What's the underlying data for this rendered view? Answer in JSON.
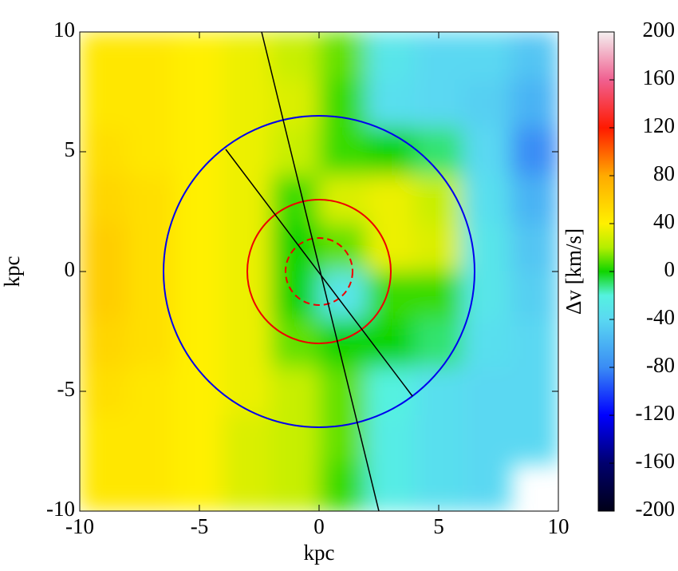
{
  "chart_data": {
    "type": "heatmap",
    "xlabel": "kpc",
    "ylabel": "kpc",
    "xlim": [
      -10,
      10
    ],
    "ylim": [
      -10,
      10
    ],
    "xticks": [
      -10,
      -5,
      0,
      5,
      10
    ],
    "yticks": [
      -10,
      -5,
      0,
      5,
      10
    ],
    "x": [
      -9,
      -7,
      -5,
      -3,
      -1,
      1,
      3,
      5,
      7,
      9
    ],
    "y": [
      9,
      7,
      5,
      3,
      1,
      -1,
      -3,
      -5,
      -7,
      -9
    ],
    "z": [
      [
        45,
        45,
        40,
        35,
        25,
        10,
        -30,
        -40,
        -40,
        -50
      ],
      [
        45,
        45,
        40,
        35,
        30,
        5,
        -35,
        -40,
        -45,
        -60
      ],
      [
        50,
        45,
        40,
        35,
        25,
        5,
        0,
        -10,
        -40,
        -80
      ],
      [
        55,
        50,
        40,
        35,
        5,
        30,
        35,
        25,
        -35,
        -60
      ],
      [
        60,
        50,
        40,
        35,
        0,
        10,
        35,
        30,
        -30,
        -50
      ],
      [
        60,
        50,
        40,
        35,
        0,
        -30,
        5,
        5,
        -30,
        -45
      ],
      [
        55,
        50,
        40,
        35,
        10,
        0,
        0,
        -10,
        -35,
        -40
      ],
      [
        50,
        45,
        40,
        35,
        25,
        10,
        -20,
        -35,
        -40,
        -40
      ],
      [
        45,
        45,
        40,
        30,
        25,
        10,
        -25,
        -35,
        -40,
        -40
      ],
      [
        45,
        45,
        40,
        30,
        25,
        5,
        -25,
        -35,
        -40,
        null
      ]
    ],
    "colormap": [
      [
        -200,
        "#000018"
      ],
      [
        -160,
        "#00006e"
      ],
      [
        -120,
        "#0000ff"
      ],
      [
        -80,
        "#3a8cf5"
      ],
      [
        -40,
        "#5ad8f2"
      ],
      [
        -20,
        "#55f2e0"
      ],
      [
        0,
        "#10d400"
      ],
      [
        20,
        "#b4ee00"
      ],
      [
        40,
        "#fff000"
      ],
      [
        80,
        "#ffaa00"
      ],
      [
        120,
        "#ff1a00"
      ],
      [
        160,
        "#f06090"
      ],
      [
        200,
        "#f4f0f0"
      ]
    ],
    "colorbar": {
      "label": "Δv [km/s]",
      "lim": [
        -200,
        200
      ],
      "ticks": [
        -200,
        -160,
        -120,
        -80,
        -40,
        0,
        40,
        80,
        120,
        160,
        200
      ]
    },
    "circles": [
      {
        "r": 6.5,
        "color": "#0000ee",
        "dashed": false
      },
      {
        "r": 3,
        "color": "#ee0000",
        "dashed": false
      },
      {
        "r": 1.4,
        "color": "#ee0000",
        "dashed": true
      }
    ],
    "lines": [
      {
        "x": [
          -2.4,
          2.5
        ],
        "y": [
          10,
          -10
        ],
        "color": "#000000"
      },
      {
        "x": [
          -3.9,
          3.9
        ],
        "y": [
          5.1,
          -5.2
        ],
        "color": "#000000"
      }
    ]
  }
}
